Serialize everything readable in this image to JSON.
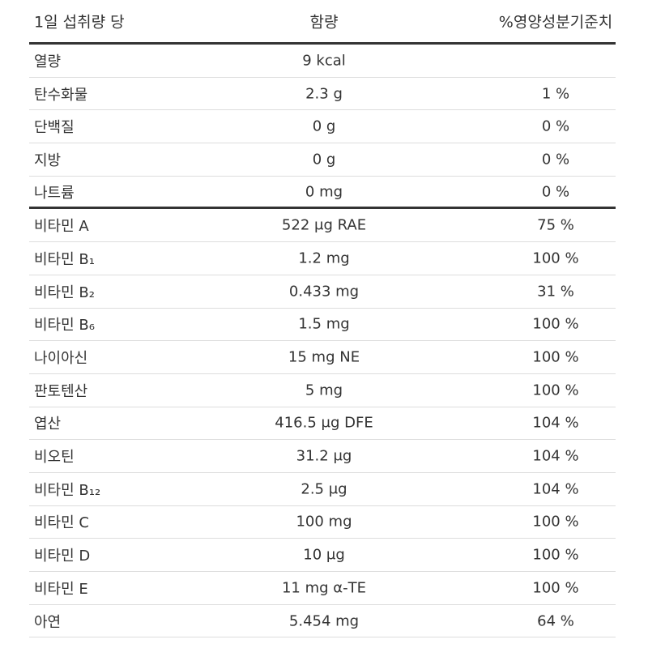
{
  "table": {
    "header": [
      "1일 섭취량 당",
      "함량",
      "%영양성분기준치"
    ],
    "sections": [
      [
        [
          "열량",
          "9 kcal"
        ],
        [
          "탄수화물",
          "2.3 g",
          "1 %"
        ],
        [
          "단백질",
          "0 g",
          "0 %"
        ],
        [
          "지방",
          "0 g",
          "0 %"
        ],
        [
          "나트륨",
          "0 mg",
          "0 %"
        ]
      ],
      [
        [
          "비타민 A",
          "522 μg RAE",
          "75 %"
        ],
        [
          "비타민 B₁",
          "1.2 mg",
          "100 %"
        ],
        [
          "비타민 B₂",
          "0.433 mg",
          "31 %"
        ],
        [
          "비타민 B₆",
          "1.5 mg",
          "100 %"
        ],
        [
          "나이아신",
          "15 mg NE",
          "100 %"
        ],
        [
          "판토텐산",
          "5 mg",
          "100 %"
        ],
        [
          "엽산",
          "416.5 μg DFE",
          "104 %"
        ],
        [
          "비오틴",
          "31.2 μg",
          "104 %"
        ],
        [
          "비타민 B₁₂",
          "2.5 μg",
          "104 %"
        ],
        [
          "비타민 C",
          "100 mg",
          "100 %"
        ],
        [
          "비타민 D",
          "10 μg",
          "100 %"
        ],
        [
          "비타민 E",
          "11 mg α-TE",
          "100 %"
        ],
        [
          "아연",
          "5.454 mg",
          "64 %"
        ]
      ]
    ]
  }
}
